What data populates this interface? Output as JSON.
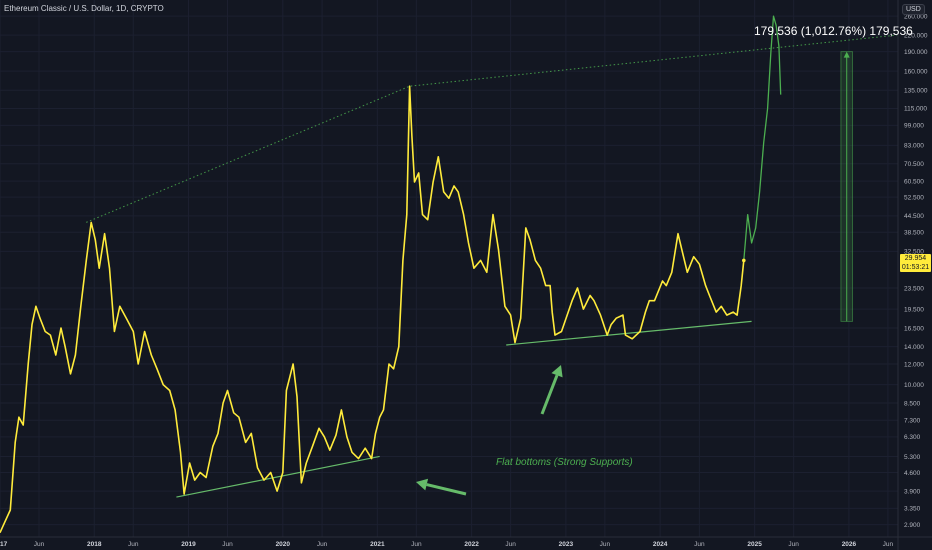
{
  "header": {
    "symbol_title": "Ethereum Classic / U.S. Dollar, 1D, CRYPTO",
    "currency": "USD"
  },
  "measure": {
    "label": "179.536 (1,012.76%) 179,536"
  },
  "annotation": {
    "text": "Flat bottoms (Strong Supports)"
  },
  "price_badge": {
    "price": "29.954",
    "countdown": "01:53:21"
  },
  "colors": {
    "background": "#131722",
    "price_line": "#ffeb3b",
    "projection": "#4caf50",
    "support": "#66bb6a",
    "grid": "#1c2030",
    "text": "#b2b5be"
  },
  "chart_data": {
    "type": "line",
    "title": "Ethereum Classic / U.S. Dollar, 1D, CRYPTO",
    "xlabel": "",
    "ylabel": "USD",
    "y_scale": "log",
    "ylim": [
      2.6,
      300
    ],
    "xlim": [
      "2017-01-01",
      "2026-07-10"
    ],
    "grid": true,
    "y_ticks": [
      2.9,
      3.35,
      3.9,
      4.6,
      5.3,
      6.3,
      7.3,
      8.5,
      10,
      12,
      14,
      16.5,
      19.5,
      23.5,
      32.5,
      38.5,
      44.5,
      52.5,
      60.5,
      70.5,
      83,
      99,
      115,
      135,
      160,
      190,
      220,
      260
    ],
    "y_tick_labels": [
      "2.900",
      "3.350",
      "3.900",
      "4.600",
      "5.300",
      "6.300",
      "7.300",
      "8.500",
      "10.000",
      "12.000",
      "14.000",
      "16.500",
      "19.500",
      "23.500",
      "32.500",
      "38.500",
      "44.500",
      "52.500",
      "60.500",
      "70.500",
      "83.000",
      "99.000",
      "115.000",
      "135.000",
      "160.000",
      "190.000",
      "220.000",
      "260.000"
    ],
    "x_ticks": [
      {
        "label": "2017",
        "date": "2017-01-01",
        "year": true
      },
      {
        "label": "Jun",
        "date": "2017-06-01",
        "year": false
      },
      {
        "label": "2018",
        "date": "2018-01-01",
        "year": true
      },
      {
        "label": "Jun",
        "date": "2018-06-01",
        "year": false
      },
      {
        "label": "2019",
        "date": "2019-01-01",
        "year": true
      },
      {
        "label": "Jun",
        "date": "2019-06-01",
        "year": false
      },
      {
        "label": "2020",
        "date": "2020-01-01",
        "year": true
      },
      {
        "label": "Jun",
        "date": "2020-06-01",
        "year": false
      },
      {
        "label": "2021",
        "date": "2021-01-01",
        "year": true
      },
      {
        "label": "Jun",
        "date": "2021-06-01",
        "year": false
      },
      {
        "label": "2022",
        "date": "2022-01-01",
        "year": true
      },
      {
        "label": "Jun",
        "date": "2022-06-01",
        "year": false
      },
      {
        "label": "2023",
        "date": "2023-01-01",
        "year": true
      },
      {
        "label": "Jun",
        "date": "2023-06-01",
        "year": false
      },
      {
        "label": "2024",
        "date": "2024-01-01",
        "year": true
      },
      {
        "label": "Jun",
        "date": "2024-06-01",
        "year": false
      },
      {
        "label": "2025",
        "date": "2025-01-01",
        "year": true
      },
      {
        "label": "Jun",
        "date": "2025-06-01",
        "year": false
      },
      {
        "label": "2026",
        "date": "2026-01-01",
        "year": true
      },
      {
        "label": "Jun",
        "date": "2026-06-01",
        "year": false
      }
    ],
    "series": [
      {
        "type": "price",
        "points": [
          [
            "2017-01-01",
            2.7
          ],
          [
            "2017-01-15",
            2.9
          ],
          [
            "2017-02-10",
            3.3
          ],
          [
            "2017-03-01",
            6.0
          ],
          [
            "2017-03-15",
            7.5
          ],
          [
            "2017-04-01",
            7.0
          ],
          [
            "2017-04-20",
            12.0
          ],
          [
            "2017-05-05",
            17.0
          ],
          [
            "2017-05-20",
            20.0
          ],
          [
            "2017-06-05",
            18.0
          ],
          [
            "2017-06-25",
            16.0
          ],
          [
            "2017-07-15",
            15.5
          ],
          [
            "2017-08-05",
            13.0
          ],
          [
            "2017-08-25",
            16.5
          ],
          [
            "2017-09-10",
            14.0
          ],
          [
            "2017-10-01",
            11.0
          ],
          [
            "2017-10-20",
            13.0
          ],
          [
            "2017-11-10",
            20.0
          ],
          [
            "2017-12-01",
            30.0
          ],
          [
            "2017-12-20",
            42.0
          ],
          [
            "2018-01-05",
            36.0
          ],
          [
            "2018-01-20",
            28.0
          ],
          [
            "2018-02-10",
            38.0
          ],
          [
            "2018-03-01",
            28.0
          ],
          [
            "2018-03-20",
            16.0
          ],
          [
            "2018-04-10",
            20.0
          ],
          [
            "2018-05-05",
            18.0
          ],
          [
            "2018-06-01",
            16.0
          ],
          [
            "2018-06-20",
            12.0
          ],
          [
            "2018-07-15",
            16.0
          ],
          [
            "2018-08-10",
            13.0
          ],
          [
            "2018-09-01",
            11.5
          ],
          [
            "2018-09-25",
            10.0
          ],
          [
            "2018-10-20",
            9.5
          ],
          [
            "2018-11-10",
            8.0
          ],
          [
            "2018-12-01",
            5.5
          ],
          [
            "2018-12-15",
            3.8
          ],
          [
            "2019-01-05",
            5.0
          ],
          [
            "2019-01-25",
            4.3
          ],
          [
            "2019-02-15",
            4.6
          ],
          [
            "2019-03-10",
            4.4
          ],
          [
            "2019-04-05",
            5.8
          ],
          [
            "2019-04-25",
            6.5
          ],
          [
            "2019-05-15",
            8.5
          ],
          [
            "2019-06-01",
            9.5
          ],
          [
            "2019-06-25",
            7.8
          ],
          [
            "2019-07-15",
            7.5
          ],
          [
            "2019-08-10",
            6.0
          ],
          [
            "2019-09-01",
            6.5
          ],
          [
            "2019-09-25",
            4.8
          ],
          [
            "2019-10-20",
            4.3
          ],
          [
            "2019-11-15",
            4.6
          ],
          [
            "2019-12-10",
            3.9
          ],
          [
            "2020-01-01",
            4.6
          ],
          [
            "2020-01-15",
            9.5
          ],
          [
            "2020-02-10",
            12.0
          ],
          [
            "2020-02-25",
            9.0
          ],
          [
            "2020-03-13",
            4.2
          ],
          [
            "2020-04-01",
            5.0
          ],
          [
            "2020-04-25",
            5.8
          ],
          [
            "2020-05-20",
            6.8
          ],
          [
            "2020-06-10",
            6.3
          ],
          [
            "2020-07-01",
            5.6
          ],
          [
            "2020-07-25",
            6.4
          ],
          [
            "2020-08-15",
            8.0
          ],
          [
            "2020-09-05",
            6.3
          ],
          [
            "2020-09-25",
            5.5
          ],
          [
            "2020-10-20",
            5.2
          ],
          [
            "2020-11-15",
            5.7
          ],
          [
            "2020-12-10",
            5.2
          ],
          [
            "2020-12-25",
            6.5
          ],
          [
            "2021-01-10",
            7.5
          ],
          [
            "2021-01-25",
            8.0
          ],
          [
            "2021-02-15",
            12.0
          ],
          [
            "2021-03-05",
            11.5
          ],
          [
            "2021-03-25",
            14.0
          ],
          [
            "2021-04-10",
            30.0
          ],
          [
            "2021-04-25",
            45.0
          ],
          [
            "2021-05-06",
            140.0
          ],
          [
            "2021-05-15",
            90.0
          ],
          [
            "2021-05-25",
            60.0
          ],
          [
            "2021-06-10",
            65.0
          ],
          [
            "2021-06-25",
            45.0
          ],
          [
            "2021-07-15",
            43.0
          ],
          [
            "2021-08-05",
            60.0
          ],
          [
            "2021-08-25",
            75.0
          ],
          [
            "2021-09-15",
            55.0
          ],
          [
            "2021-10-05",
            52.0
          ],
          [
            "2021-10-25",
            58.0
          ],
          [
            "2021-11-10",
            55.0
          ],
          [
            "2021-12-01",
            45.0
          ],
          [
            "2021-12-20",
            35.0
          ],
          [
            "2022-01-10",
            28.0
          ],
          [
            "2022-02-05",
            30.0
          ],
          [
            "2022-03-01",
            27.0
          ],
          [
            "2022-03-25",
            45.0
          ],
          [
            "2022-04-15",
            33.0
          ],
          [
            "2022-05-10",
            20.0
          ],
          [
            "2022-06-01",
            18.5
          ],
          [
            "2022-06-18",
            14.5
          ],
          [
            "2022-07-10",
            18.0
          ],
          [
            "2022-07-30",
            40.0
          ],
          [
            "2022-08-15",
            36.0
          ],
          [
            "2022-09-05",
            30.0
          ],
          [
            "2022-09-25",
            28.0
          ],
          [
            "2022-10-15",
            24.0
          ],
          [
            "2022-11-01",
            24.0
          ],
          [
            "2022-11-09",
            19.0
          ],
          [
            "2022-11-20",
            15.5
          ],
          [
            "2022-12-15",
            16.0
          ],
          [
            "2023-01-10",
            19.0
          ],
          [
            "2023-01-25",
            21.0
          ],
          [
            "2023-02-15",
            23.5
          ],
          [
            "2023-03-10",
            19.5
          ],
          [
            "2023-04-05",
            22.0
          ],
          [
            "2023-04-20",
            21.0
          ],
          [
            "2023-05-15",
            18.5
          ],
          [
            "2023-06-10",
            15.5
          ],
          [
            "2023-06-25",
            17.0
          ],
          [
            "2023-07-15",
            18.0
          ],
          [
            "2023-08-10",
            18.5
          ],
          [
            "2023-08-20",
            15.5
          ],
          [
            "2023-09-15",
            15.0
          ],
          [
            "2023-10-15",
            16.0
          ],
          [
            "2023-11-05",
            19.0
          ],
          [
            "2023-11-20",
            21.0
          ],
          [
            "2023-12-10",
            21.0
          ],
          [
            "2024-01-10",
            25.0
          ],
          [
            "2024-01-25",
            24.0
          ],
          [
            "2024-02-15",
            27.0
          ],
          [
            "2024-03-10",
            38.0
          ],
          [
            "2024-03-25",
            33.0
          ],
          [
            "2024-04-15",
            27.0
          ],
          [
            "2024-05-10",
            31.0
          ],
          [
            "2024-06-01",
            29.0
          ],
          [
            "2024-06-25",
            24.0
          ],
          [
            "2024-07-10",
            22.0
          ],
          [
            "2024-08-05",
            19.0
          ],
          [
            "2024-08-25",
            20.0
          ],
          [
            "2024-09-15",
            18.5
          ],
          [
            "2024-10-10",
            19.0
          ],
          [
            "2024-10-25",
            18.5
          ],
          [
            "2024-11-10",
            24.0
          ],
          [
            "2024-11-20",
            30.0
          ]
        ]
      },
      {
        "type": "projection",
        "points": [
          [
            "2024-11-20",
            30.0
          ],
          [
            "2024-12-05",
            45.0
          ],
          [
            "2024-12-20",
            35.0
          ],
          [
            "2025-01-05",
            40.0
          ],
          [
            "2025-01-20",
            55.0
          ],
          [
            "2025-02-05",
            85.0
          ],
          [
            "2025-02-20",
            115.0
          ],
          [
            "2025-03-05",
            190.0
          ],
          [
            "2025-03-15",
            260.0
          ],
          [
            "2025-03-25",
            240.0
          ],
          [
            "2025-04-05",
            200.0
          ],
          [
            "2025-04-12",
            130.0
          ]
        ]
      }
    ],
    "upper_trendline": [
      [
        "2017-12-01",
        42.0
      ],
      [
        "2021-05-06",
        140.0
      ],
      [
        "2026-07-05",
        220.0
      ]
    ],
    "support_lines": [
      [
        [
          "2018-11-15",
          3.7
        ],
        [
          "2021-01-10",
          5.3
        ]
      ],
      [
        [
          "2022-05-15",
          14.2
        ],
        [
          "2024-12-20",
          17.5
        ]
      ]
    ],
    "projection_box": {
      "x0": "2025-12-01",
      "x1": "2026-01-15",
      "y0": 17.5,
      "y1": 190.0
    }
  }
}
